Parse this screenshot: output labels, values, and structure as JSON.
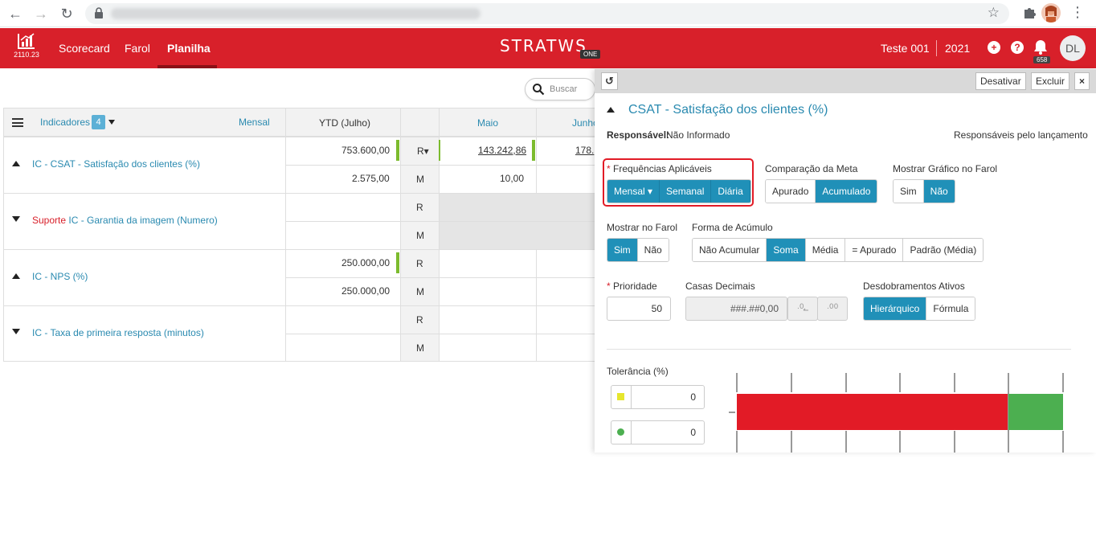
{
  "browser": {
    "url": "",
    "back_icon": "←",
    "forward_icon": "→",
    "reload_icon": "↻",
    "star_icon": "☆",
    "menu_icon": "⋮"
  },
  "header": {
    "version": "2110.23",
    "menu": [
      "Scorecard",
      "Farol",
      "Planilha"
    ],
    "brand": "STRATWS",
    "brand_suffix": "ONE",
    "user_label": "Teste 001",
    "year": "2021",
    "plus_icon": "+",
    "help_icon": "?",
    "notif_count": "658",
    "avatar_initials": "DL",
    "accent_color": "#d8202a"
  },
  "search": {
    "placeholder": "Buscar"
  },
  "table": {
    "indicators_label": "Indicadores",
    "indicators_count": "4",
    "period_label": "Mensal",
    "col_ytd": "YTD (Julho)",
    "col_may": "Maio",
    "col_june": "Junho",
    "rows": [
      {
        "title": "IC - CSAT - Satisfação dos clientes (%)",
        "prefix": "",
        "r_ytd": "753.600,00",
        "r_label": "R▾",
        "r_may": "143.242,86",
        "r_june": "178.",
        "m_ytd": "2.575,00",
        "m_label": "M",
        "m_may": "10,00"
      },
      {
        "title": "IC - Garantia da imagem (Numero)",
        "prefix": "Suporte",
        "r_ytd": "",
        "r_label": "R",
        "r_may": "",
        "r_june": "",
        "m_ytd": "",
        "m_label": "M",
        "m_may": ""
      },
      {
        "title": "IC - NPS (%)",
        "prefix": "",
        "r_ytd": "250.000,00",
        "r_label": "R",
        "r_may": "",
        "r_june": "",
        "m_ytd": "250.000,00",
        "m_label": "M",
        "m_may": ""
      },
      {
        "title": "IC - Taxa de primeira resposta (minutos)",
        "prefix": "",
        "r_ytd": "",
        "r_label": "R",
        "r_may": "",
        "r_june": "",
        "m_ytd": "",
        "m_label": "M",
        "m_may": ""
      }
    ]
  },
  "panel": {
    "history_icon": "↺",
    "btn_deactivate": "Desativar",
    "btn_delete": "Excluir",
    "btn_close": "×",
    "title": "CSAT - Satisfação dos clientes (%)",
    "responsible_label": "Responsável:",
    "responsible_value": "Não Informado",
    "responsible_link": "Responsáveis pelo lançamento",
    "freq_label": "Frequências Aplicáveis",
    "freq_options": [
      "Mensal ▾",
      "Semanal",
      "Diária"
    ],
    "meta_label": "Comparação da Meta",
    "meta_options": [
      "Apurado",
      "Acumulado"
    ],
    "graph_label": "Mostrar Gráfico no Farol",
    "graph_options": [
      "Sim",
      "Não"
    ],
    "farol_label": "Mostrar no Farol",
    "farol_options": [
      "Sim",
      "Não"
    ],
    "acum_label": "Forma de Acúmulo",
    "acum_options": [
      "Não Acumular",
      "Soma",
      "Média",
      "= Apurado",
      "Padrão (Média)"
    ],
    "prio_label": "Prioridade",
    "prio_value": "50",
    "dec_label": "Casas Decimais",
    "dec_value": "###.##0,00",
    "desd_label": "Desdobramentos Ativos",
    "desd_options": [
      "Hierárquico",
      "Fórmula"
    ],
    "tol_label": "Tolerância (%)",
    "tol_yellow": "0",
    "tol_green": "0",
    "colors": {
      "primary": "#2090b8",
      "red": "#e21b26",
      "green": "#4caf50",
      "yellow": "#e6e62e"
    }
  }
}
